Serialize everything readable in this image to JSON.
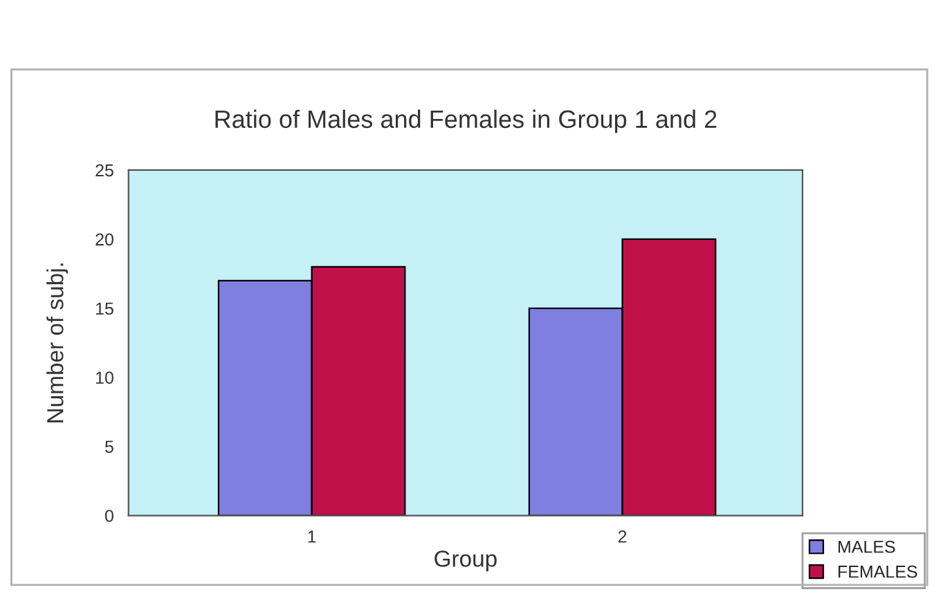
{
  "chart_data": {
    "type": "bar",
    "title": "Ratio of Males and Females in Group 1 and 2",
    "xlabel": "Group",
    "ylabel": "Number of subj.",
    "categories": [
      "1",
      "2"
    ],
    "series": [
      {
        "name": "MALES",
        "color": "#7f7fe0",
        "values": [
          17,
          15
        ]
      },
      {
        "name": "FEMALES",
        "color": "#c0104a",
        "values": [
          18,
          20
        ]
      }
    ],
    "ylim": [
      0,
      25
    ],
    "yticks": [
      0,
      5,
      10,
      15,
      20,
      25
    ],
    "grid": false,
    "legend": "bottom right"
  }
}
